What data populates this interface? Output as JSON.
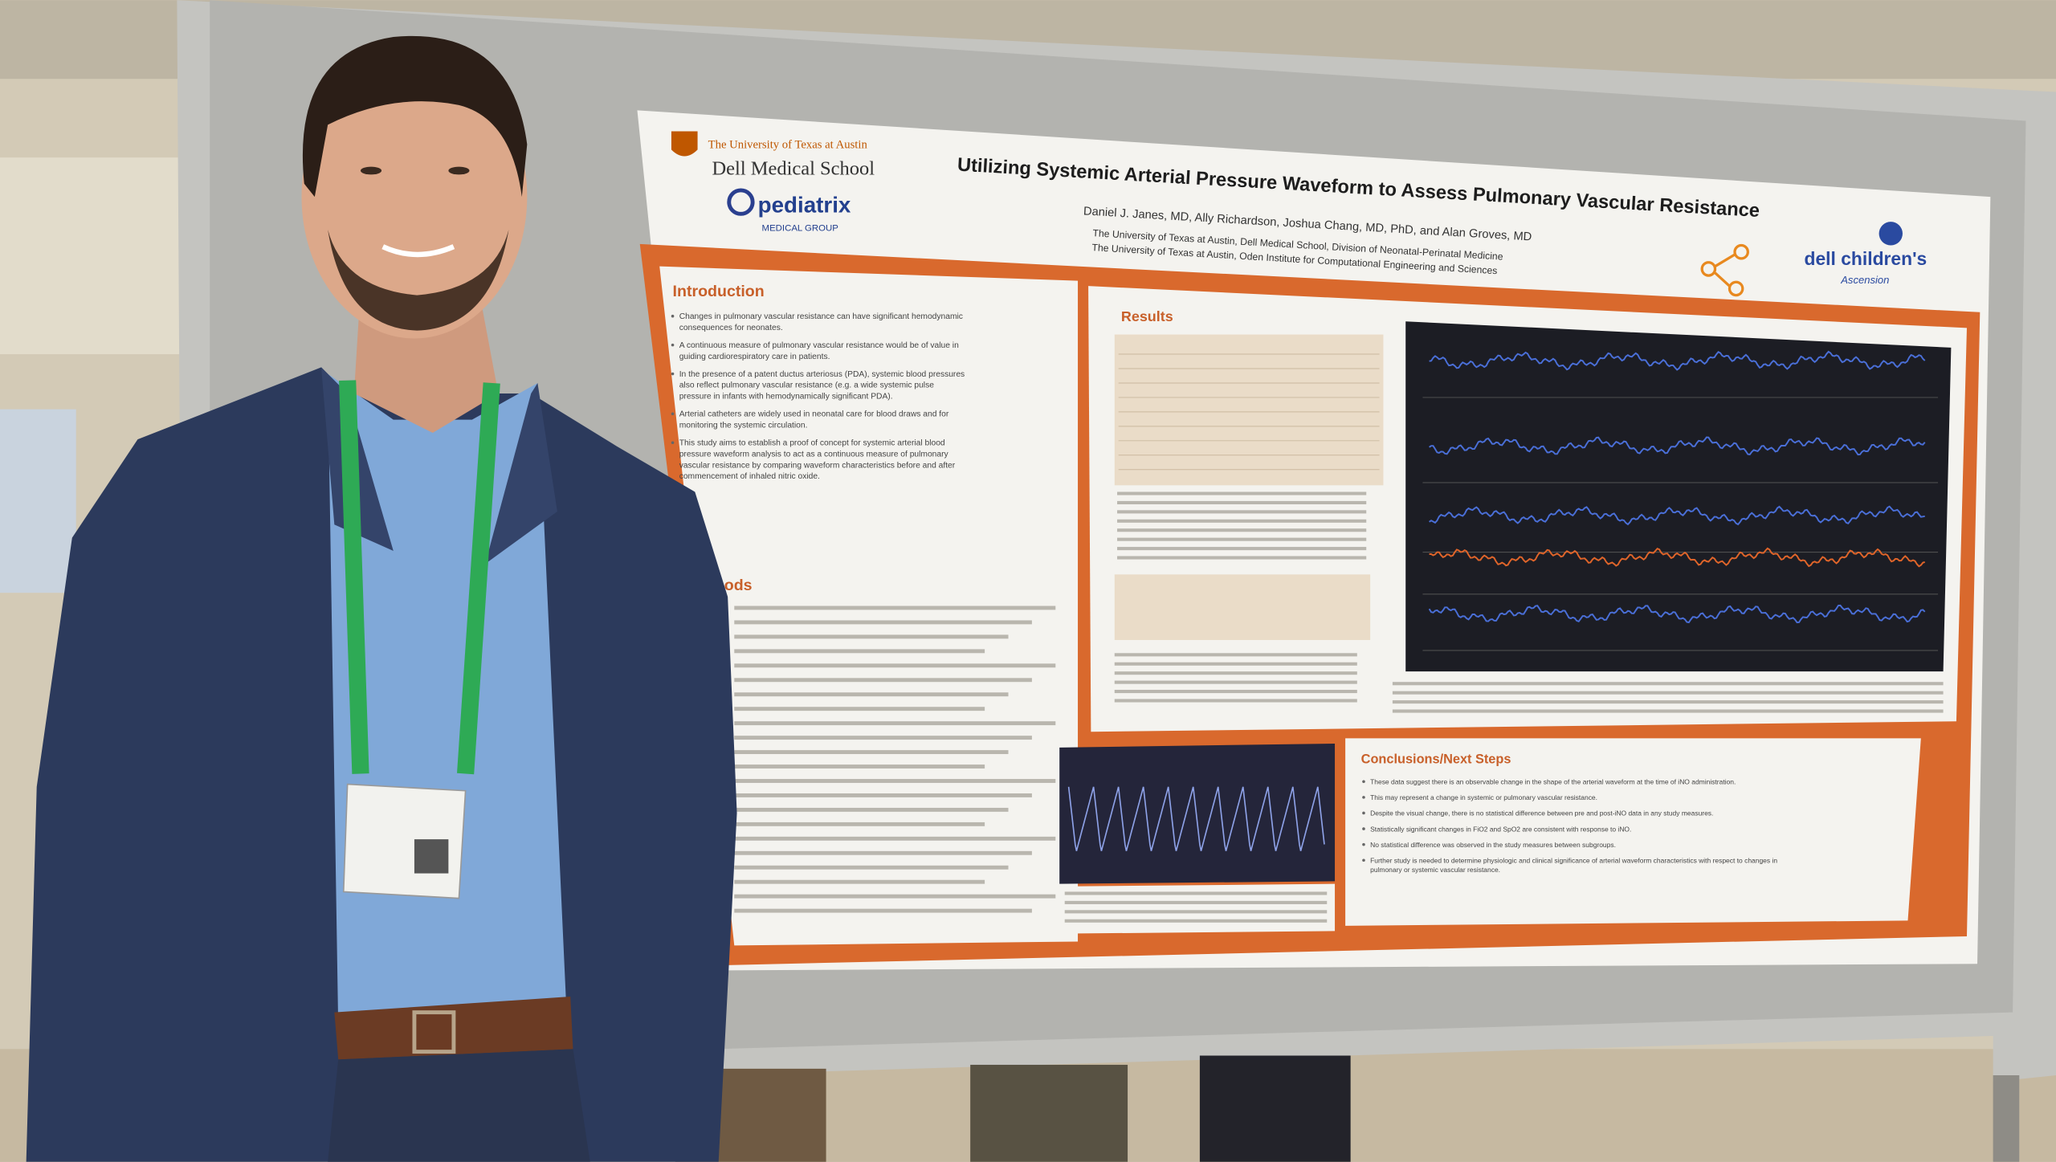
{
  "poster": {
    "logos": {
      "university": "The University of Texas at Austin",
      "school": "Dell Medical School",
      "pediatrix": "pediatrix",
      "pediatrix_sub": "MEDICAL GROUP",
      "dell_childrens": "dell children's",
      "ascension": "Ascension"
    },
    "title": "Utilizing Systemic Arterial Pressure Waveform to Assess Pulmonary Vascular Resistance",
    "authors": "Daniel J. Janes, MD, Ally Richardson, Joshua Chang, MD, PhD, and Alan Groves, MD",
    "affiliations": [
      "The University of Texas at Austin, Dell Medical School, Division of Neonatal-Perinatal Medicine",
      "The University of Texas at Austin, Oden Institute for Computational Engineering and Sciences"
    ],
    "sections": {
      "introduction": {
        "heading": "Introduction",
        "bullets": [
          "Changes in pulmonary vascular resistance can have significant hemodynamic consequences for neonates.",
          "A continuous measure of pulmonary vascular resistance would be of value in guiding cardiorespiratory care in patients.",
          "In the presence of a patent ductus arteriosus (PDA), systemic blood pressures also reflect pulmonary vascular resistance (e.g. a wide systemic pulse pressure in infants with hemodynamically significant PDA).",
          "Arterial catheters are widely used in neonatal care for blood draws and for monitoring the systemic circulation.",
          "This study aims to establish a proof of concept for systemic arterial blood pressure waveform analysis to act as a continuous measure of pulmonary vascular resistance by comparing waveform characteristics before and after commencement of inhaled nitric oxide."
        ]
      },
      "methods": {
        "heading": "hods"
      },
      "results": {
        "heading": "Results"
      },
      "conclusions": {
        "heading": "Conclusions/Next Steps",
        "bullets": [
          "These data suggest there is an observable change in the shape of the arterial waveform at the time of iNO administration.",
          "This may represent a change in systemic or pulmonary vascular resistance.",
          "Despite the visual change, there is no statistical difference between pre and post-iNO data in any study measures.",
          "Statistically significant changes in FiO2 and SpO2 are consistent with response to iNO.",
          "No statistical difference was observed in the study measures between subgroups.",
          "Further study is needed to determine physiologic and clinical significance of arterial waveform characteristics with respect to changes in pulmonary or systemic vascular resistance."
        ]
      }
    }
  }
}
